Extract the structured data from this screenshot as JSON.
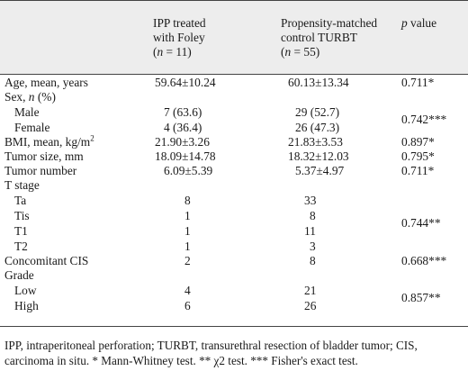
{
  "header": {
    "col2": [
      "IPP treated",
      "with Foley",
      "(n = 11)"
    ],
    "col3": [
      "Propensity-matched",
      "control TURBT",
      "(n = 55)"
    ],
    "col4": "p value"
  },
  "rows": [
    {
      "label": "Age, mean, years",
      "ipp": "59.64±10.24",
      "ctrl": "60.13±13.34",
      "p": "0.711*"
    },
    {
      "label": "Sex, n (%)",
      "ipp": "",
      "ctrl": "",
      "p": ""
    },
    {
      "label": "Male",
      "ipp": "7 (63.6)",
      "ctrl": "29 (52.7)",
      "p": ""
    },
    {
      "label": "Female",
      "ipp": "4 (36.4)",
      "ctrl": "26 (47.3)",
      "p": ""
    },
    {
      "label": "BMI, mean, kg/m²",
      "ipp": "21.90±3.26",
      "ctrl": "21.83±3.53",
      "p": "0.897*"
    },
    {
      "label": "Tumor size, mm",
      "ipp": "18.09±14.78",
      "ctrl": "18.32±12.03",
      "p": "0.795*"
    },
    {
      "label": "Tumor number",
      "ipp": "6.09±5.39",
      "ctrl": "5.37±4.97",
      "p": "0.711*"
    },
    {
      "label": "T stage",
      "ipp": "",
      "ctrl": "",
      "p": ""
    },
    {
      "label": "Ta",
      "ipp": "8",
      "ctrl": "33",
      "p": ""
    },
    {
      "label": "Tis",
      "ipp": "1",
      "ctrl": "8",
      "p": ""
    },
    {
      "label": "T1",
      "ipp": "1",
      "ctrl": "11",
      "p": ""
    },
    {
      "label": "T2",
      "ipp": "1",
      "ctrl": "3",
      "p": ""
    },
    {
      "label": "Concomitant CIS",
      "ipp": "2",
      "ctrl": "8",
      "p": "0.668***"
    },
    {
      "label": "Grade",
      "ipp": "",
      "ctrl": "",
      "p": ""
    },
    {
      "label": "Low",
      "ipp": "4",
      "ctrl": "21",
      "p": ""
    },
    {
      "label": "High",
      "ipp": "6",
      "ctrl": "26",
      "p": ""
    }
  ],
  "merged_p": {
    "sex": "0.742***",
    "tstage": "0.744**",
    "grade": "0.857**"
  },
  "footnote": "IPP, intraperitoneal perforation; TURBT, transurethral resection of bladder tumor; CIS, carcinoma in situ. * Mann-Whitney test. ** χ2 test. *** Fisher's exact test."
}
